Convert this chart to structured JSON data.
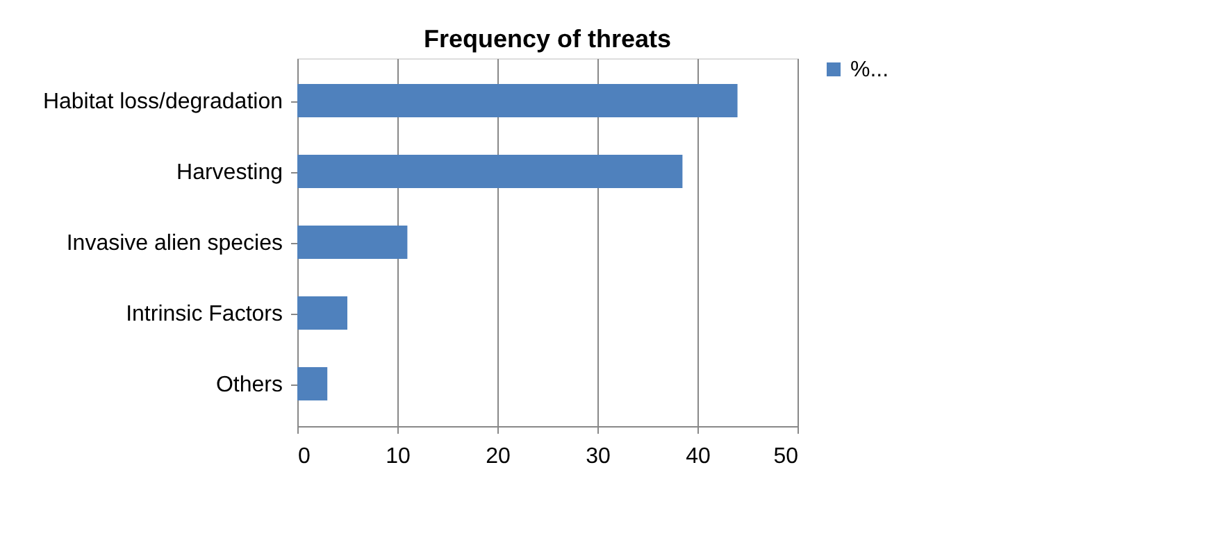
{
  "chart_data": {
    "type": "bar",
    "orientation": "horizontal",
    "title": "Frequency of threats",
    "categories": [
      "Habitat loss/degradation",
      "Harvesting",
      "Invasive alien species",
      "Intrinsic Factors",
      "Others"
    ],
    "series": [
      {
        "name": "%...",
        "color": "#4f81bd",
        "values": [
          44,
          38.5,
          11,
          5,
          3
        ]
      }
    ],
    "xlim": [
      0,
      50
    ],
    "xticks": [
      0,
      10,
      20,
      30,
      40,
      50
    ],
    "grid": "x",
    "legend": "right"
  }
}
